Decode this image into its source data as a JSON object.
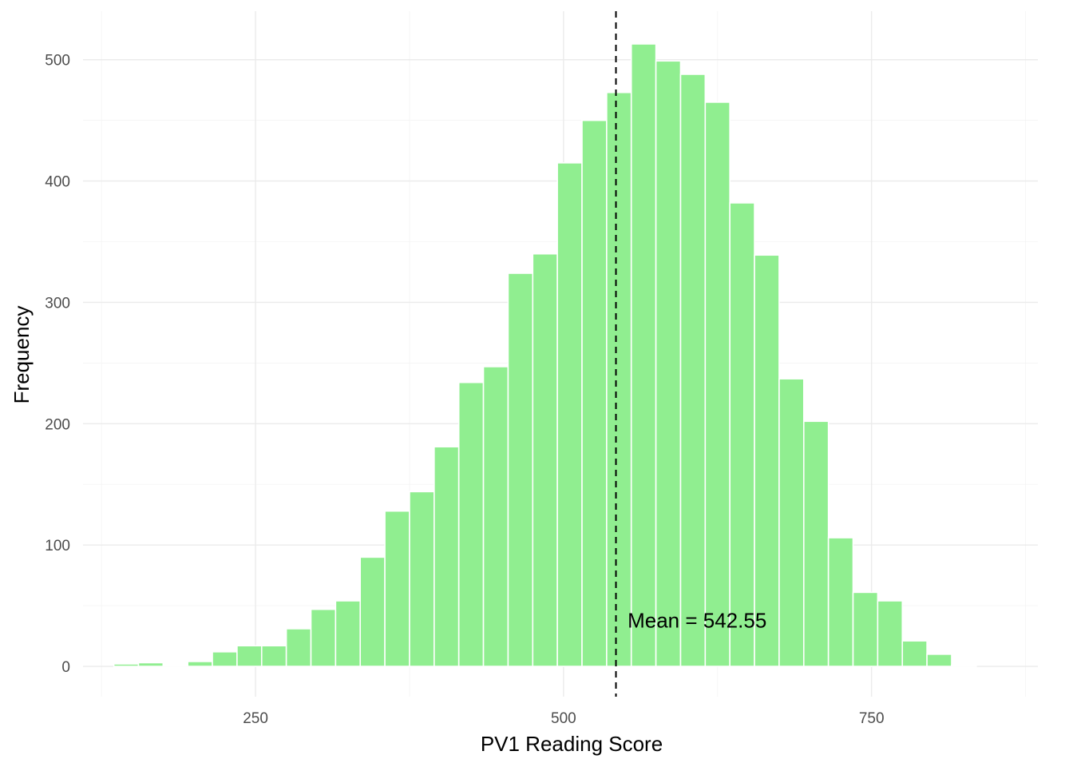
{
  "chart_data": {
    "type": "bar",
    "subtype": "histogram",
    "xlabel": "PV1 Reading Score",
    "ylabel": "Frequency",
    "xlim": [
      110,
      885
    ],
    "ylim": [
      -25,
      540
    ],
    "x_ticks": [
      250,
      500,
      750
    ],
    "y_ticks": [
      0,
      100,
      200,
      300,
      400,
      500
    ],
    "bin_width": 20,
    "bin_centers": [
      145,
      165,
      185,
      205,
      225,
      245,
      265,
      285,
      305,
      325,
      345,
      365,
      385,
      405,
      425,
      445,
      465,
      485,
      505,
      525,
      545,
      565,
      585,
      605,
      625,
      645,
      665,
      685,
      705,
      725,
      745,
      765,
      785,
      805,
      825,
      845,
      865
    ],
    "values": [
      2,
      3,
      1,
      4,
      12,
      17,
      17,
      31,
      47,
      54,
      90,
      128,
      144,
      181,
      234,
      247,
      324,
      340,
      415,
      450,
      473,
      513,
      499,
      488,
      465,
      382,
      339,
      237,
      202,
      106,
      61,
      54,
      21,
      10,
      1,
      0,
      0
    ],
    "bar_color": "#90ee90",
    "mean": 542.55,
    "mean_line_style": "dashed",
    "mean_line_color": "#000000",
    "annotation": {
      "text": "Mean = 542.55",
      "x": 552,
      "y": 32
    },
    "grid": true,
    "theme": "minimal"
  }
}
